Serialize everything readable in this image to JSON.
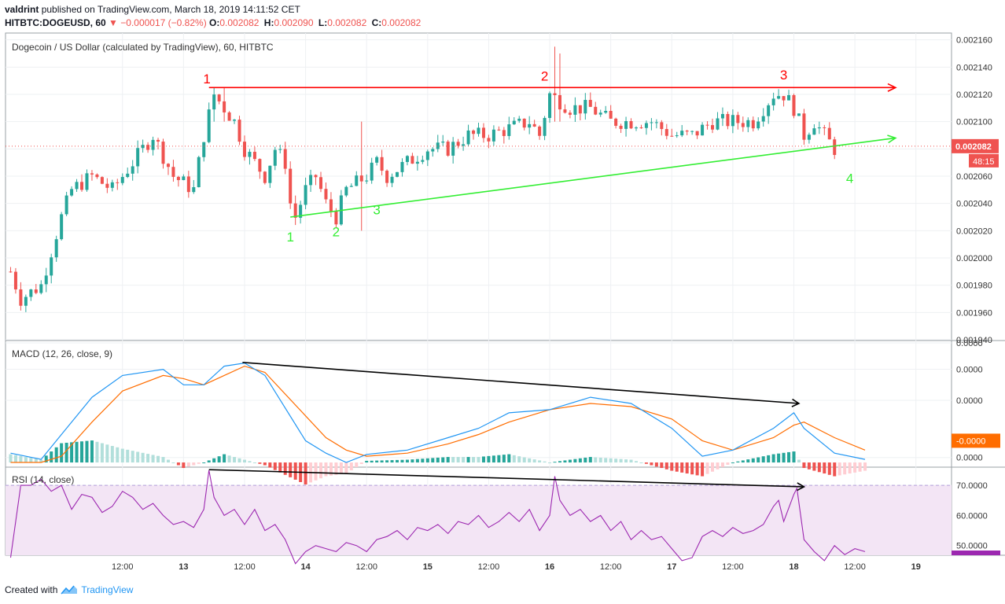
{
  "header": {
    "user": "valdrint",
    "published_text": "published on TradingView.com, March 18, 2019 14:11:52 CET",
    "symbol": "HITBTC:DOGEUSD, 60",
    "change_arrow": "▼",
    "change": "−0.000017 (−0.82%)",
    "ohlc": [
      {
        "label": "O:",
        "value": "0.002082"
      },
      {
        "label": "H:",
        "value": "0.002090"
      },
      {
        "label": "L:",
        "value": "0.002082"
      },
      {
        "label": "C:",
        "value": "0.002082"
      }
    ]
  },
  "footer": {
    "created_with": "Created with",
    "brand": "TradingView"
  },
  "colors": {
    "up": "#26a69a",
    "down": "#ef5350",
    "resistance": "#ff0000",
    "support": "#33ee33",
    "macd": "#2196f3",
    "signal": "#ff6d00",
    "rsi": "#9c27b0",
    "rsi_band": "#f3e5f5"
  },
  "chart_data": [
    {
      "type": "candlestick",
      "title": "Dogecoin / US Dollar (calculated by TradingView), 60, HITBTC",
      "ylim": [
        0.00194,
        0.002165
      ],
      "y_ticks": [
        "0.002160",
        "0.002140",
        "0.002120",
        "0.002100",
        "0.002080",
        "0.002060",
        "0.002040",
        "0.002020",
        "0.002000",
        "0.001980",
        "0.001960",
        "0.001940"
      ],
      "last_price": "0.002082",
      "countdown": "48:15",
      "x_ticks": [
        {
          "label": "12:00",
          "x": 6
        },
        {
          "label": "13",
          "x": 12
        },
        {
          "label": "12:00",
          "x": 18
        },
        {
          "label": "14",
          "x": 24
        },
        {
          "label": "12:00",
          "x": 30
        },
        {
          "label": "15",
          "x": 36
        },
        {
          "label": "12:00",
          "x": 42
        },
        {
          "label": "16",
          "x": 48
        },
        {
          "label": "12:00",
          "x": 54
        },
        {
          "label": "17",
          "x": 60
        },
        {
          "label": "12:00",
          "x": 66
        },
        {
          "label": "18",
          "x": 72
        },
        {
          "label": "12:00",
          "x": 78
        },
        {
          "label": "19",
          "x": 84
        }
      ],
      "x_range": [
        -5.5,
        87.5
      ],
      "key_closes": [
        [
          -5,
          0.00199
        ],
        [
          -4,
          0.00197
        ],
        [
          -3,
          0.001975
        ],
        [
          -2,
          0.00198
        ],
        [
          0,
          0.00203
        ],
        [
          1,
          0.00205
        ],
        [
          3,
          0.00206
        ],
        [
          5,
          0.00205
        ],
        [
          7,
          0.00207
        ],
        [
          9,
          0.00209
        ],
        [
          11,
          0.00206
        ],
        [
          12,
          0.002055
        ],
        [
          13,
          0.00205
        ],
        [
          14,
          0.00209
        ],
        [
          15,
          0.00212
        ],
        [
          16,
          0.00211
        ],
        [
          17,
          0.0021
        ],
        [
          18,
          0.00208
        ],
        [
          19,
          0.00207
        ],
        [
          20,
          0.00206
        ],
        [
          21,
          0.00208
        ],
        [
          22,
          0.00207
        ],
        [
          22.5,
          0.00204
        ],
        [
          23,
          0.00203
        ],
        [
          24,
          0.00205
        ],
        [
          25,
          0.00206
        ],
        [
          26,
          0.00204
        ],
        [
          27,
          0.00203
        ],
        [
          28,
          0.00205
        ],
        [
          30,
          0.00206
        ],
        [
          31,
          0.00207
        ],
        [
          32,
          0.00206
        ],
        [
          34,
          0.00207
        ],
        [
          36,
          0.00208
        ],
        [
          38,
          0.00208
        ],
        [
          40,
          0.00209
        ],
        [
          42,
          0.00209
        ],
        [
          44,
          0.002095
        ],
        [
          46,
          0.0021
        ],
        [
          47,
          0.00209
        ],
        [
          48,
          0.00212
        ],
        [
          50,
          0.00211
        ],
        [
          52,
          0.00211
        ],
        [
          54,
          0.0021
        ],
        [
          56,
          0.0021
        ],
        [
          58,
          0.0021
        ],
        [
          60,
          0.00209
        ],
        [
          62,
          0.00209
        ],
        [
          64,
          0.0021
        ],
        [
          66,
          0.0021
        ],
        [
          68,
          0.0021
        ],
        [
          70,
          0.00212
        ],
        [
          71,
          0.00212
        ],
        [
          72,
          0.00211
        ],
        [
          73,
          0.00209
        ],
        [
          74,
          0.0021
        ],
        [
          75,
          0.00209
        ],
        [
          76,
          0.00208
        ]
      ],
      "spikes": [
        [
          15,
          0.002125,
          0.0021
        ],
        [
          16,
          0.002125,
          0.0021
        ],
        [
          29.5,
          0.0021,
          0.00202
        ],
        [
          48.5,
          0.002155,
          0.0021
        ],
        [
          49,
          0.00215,
          0.0021
        ]
      ],
      "annotations": {
        "resistance": {
          "x1": 14.5,
          "y1": 0.002125,
          "x2": 82,
          "y2": 0.002125,
          "labels": [
            {
              "text": "1",
              "x": 14.3,
              "y": 0.002128
            },
            {
              "text": "2",
              "x": 47.5,
              "y": 0.00213
            },
            {
              "text": "3",
              "x": 71,
              "y": 0.002131
            }
          ]
        },
        "support": {
          "x1": 22.5,
          "y1": 0.00203,
          "x2": 82,
          "y2": 0.002088,
          "labels": [
            {
              "text": "1",
              "x": 22.5,
              "y": 0.002012
            },
            {
              "text": "2",
              "x": 27,
              "y": 0.002016
            },
            {
              "text": "3",
              "x": 31,
              "y": 0.002032
            },
            {
              "text": "4",
              "x": 77.5,
              "y": 0.002055
            }
          ]
        }
      }
    },
    {
      "type": "line",
      "title": "MACD (12, 26, close, 9)",
      "ylim": [
        -1.0,
        1.0
      ],
      "y_ticks": [
        {
          "label": "0.0000",
          "v": 0.975
        },
        {
          "label": "0.0000",
          "v": 0.55
        },
        {
          "label": "0.0000",
          "v": 0.05
        },
        {
          "label": "0.0000",
          "v": -0.87
        }
      ],
      "last_value": "-0.0000",
      "series": [
        {
          "role": "macd",
          "points": [
            [
              -5,
              -0.8
            ],
            [
              -2,
              -0.9
            ],
            [
              0,
              -0.5
            ],
            [
              3,
              0.1
            ],
            [
              6,
              0.45
            ],
            [
              10,
              0.55
            ],
            [
              12,
              0.3
            ],
            [
              14,
              0.3
            ],
            [
              16,
              0.6
            ],
            [
              18,
              0.65
            ],
            [
              20,
              0.45
            ],
            [
              24,
              -0.6
            ],
            [
              26,
              -0.8
            ],
            [
              28,
              -0.95
            ],
            [
              30,
              -0.82
            ],
            [
              34,
              -0.75
            ],
            [
              38,
              -0.55
            ],
            [
              41,
              -0.4
            ],
            [
              44,
              -0.15
            ],
            [
              48,
              -0.1
            ],
            [
              52,
              0.1
            ],
            [
              56,
              0.0
            ],
            [
              60,
              -0.4
            ],
            [
              63,
              -0.85
            ],
            [
              66,
              -0.75
            ],
            [
              70,
              -0.4
            ],
            [
              72,
              -0.15
            ],
            [
              73,
              -0.4
            ],
            [
              76,
              -0.8
            ],
            [
              79,
              -0.9
            ]
          ]
        },
        {
          "role": "signal",
          "points": [
            [
              -5,
              -0.95
            ],
            [
              -2,
              -0.95
            ],
            [
              0,
              -0.85
            ],
            [
              3,
              -0.3
            ],
            [
              6,
              0.2
            ],
            [
              10,
              0.45
            ],
            [
              12,
              0.4
            ],
            [
              14,
              0.3
            ],
            [
              16,
              0.45
            ],
            [
              18,
              0.6
            ],
            [
              20,
              0.5
            ],
            [
              24,
              -0.2
            ],
            [
              26,
              -0.55
            ],
            [
              28,
              -0.75
            ],
            [
              30,
              -0.85
            ],
            [
              34,
              -0.8
            ],
            [
              38,
              -0.65
            ],
            [
              41,
              -0.5
            ],
            [
              44,
              -0.3
            ],
            [
              48,
              -0.1
            ],
            [
              52,
              0.0
            ],
            [
              56,
              -0.05
            ],
            [
              60,
              -0.25
            ],
            [
              63,
              -0.6
            ],
            [
              66,
              -0.75
            ],
            [
              70,
              -0.55
            ],
            [
              72,
              -0.35
            ],
            [
              73,
              -0.3
            ],
            [
              76,
              -0.55
            ],
            [
              79,
              -0.75
            ]
          ]
        }
      ],
      "divergence_line": {
        "x1": 17.8,
        "y1": 0.66,
        "x2": 72.5,
        "y2": 0.0
      }
    },
    {
      "type": "line",
      "title": "RSI (14, close)",
      "ylim": [
        46.8,
        75.5
      ],
      "y_ticks": [
        "70.0000",
        "60.0000",
        "50.0000"
      ],
      "band": [
        30,
        70
      ],
      "series": [
        {
          "role": "rsi",
          "points": [
            [
              -5,
              46
            ],
            [
              -4,
              70
            ],
            [
              -3,
              70
            ],
            [
              -2,
              72
            ],
            [
              -1,
              68
            ],
            [
              0,
              70
            ],
            [
              1,
              62
            ],
            [
              2,
              67
            ],
            [
              3,
              66
            ],
            [
              4,
              61
            ],
            [
              5,
              63
            ],
            [
              6,
              68
            ],
            [
              7,
              66
            ],
            [
              8,
              62
            ],
            [
              9,
              64
            ],
            [
              10,
              60
            ],
            [
              11,
              57
            ],
            [
              12,
              58
            ],
            [
              13,
              56
            ],
            [
              14,
              62
            ],
            [
              14.5,
              75
            ],
            [
              15,
              66
            ],
            [
              16,
              60
            ],
            [
              17,
              62
            ],
            [
              18,
              57
            ],
            [
              19,
              62
            ],
            [
              20,
              55
            ],
            [
              21,
              57
            ],
            [
              22,
              52
            ],
            [
              23,
              44
            ],
            [
              24,
              48
            ],
            [
              25,
              50
            ],
            [
              26,
              49
            ],
            [
              27,
              48
            ],
            [
              28,
              51
            ],
            [
              29,
              50
            ],
            [
              30,
              48
            ],
            [
              31,
              52
            ],
            [
              32,
              53
            ],
            [
              33,
              55
            ],
            [
              34,
              52
            ],
            [
              35,
              56
            ],
            [
              36,
              55
            ],
            [
              37,
              57
            ],
            [
              38,
              54
            ],
            [
              39,
              58
            ],
            [
              40,
              57
            ],
            [
              41,
              60
            ],
            [
              42,
              56
            ],
            [
              43,
              58
            ],
            [
              44,
              61
            ],
            [
              45,
              58
            ],
            [
              46,
              62
            ],
            [
              47,
              55
            ],
            [
              48,
              60
            ],
            [
              48.5,
              73
            ],
            [
              49,
              65
            ],
            [
              50,
              60
            ],
            [
              51,
              62
            ],
            [
              52,
              58
            ],
            [
              53,
              60
            ],
            [
              54,
              55
            ],
            [
              55,
              58
            ],
            [
              56,
              52
            ],
            [
              57,
              55
            ],
            [
              58,
              52
            ],
            [
              59,
              53
            ],
            [
              60,
              49
            ],
            [
              61,
              45
            ],
            [
              62,
              46
            ],
            [
              63,
              53
            ],
            [
              64,
              55
            ],
            [
              65,
              53
            ],
            [
              66,
              56
            ],
            [
              67,
              54
            ],
            [
              68,
              55
            ],
            [
              69,
              57
            ],
            [
              70,
              63
            ],
            [
              70.5,
              65
            ],
            [
              71,
              58
            ],
            [
              72,
              67
            ],
            [
              72.3,
              69
            ],
            [
              73,
              52
            ],
            [
              74,
              48
            ],
            [
              75,
              45
            ],
            [
              76,
              50
            ],
            [
              77,
              47
            ],
            [
              78,
              49
            ],
            [
              79,
              48
            ]
          ]
        }
      ],
      "divergence_line": {
        "x1": 14.5,
        "y1": 75.2,
        "x2": 73,
        "y2": 69.5
      }
    }
  ]
}
